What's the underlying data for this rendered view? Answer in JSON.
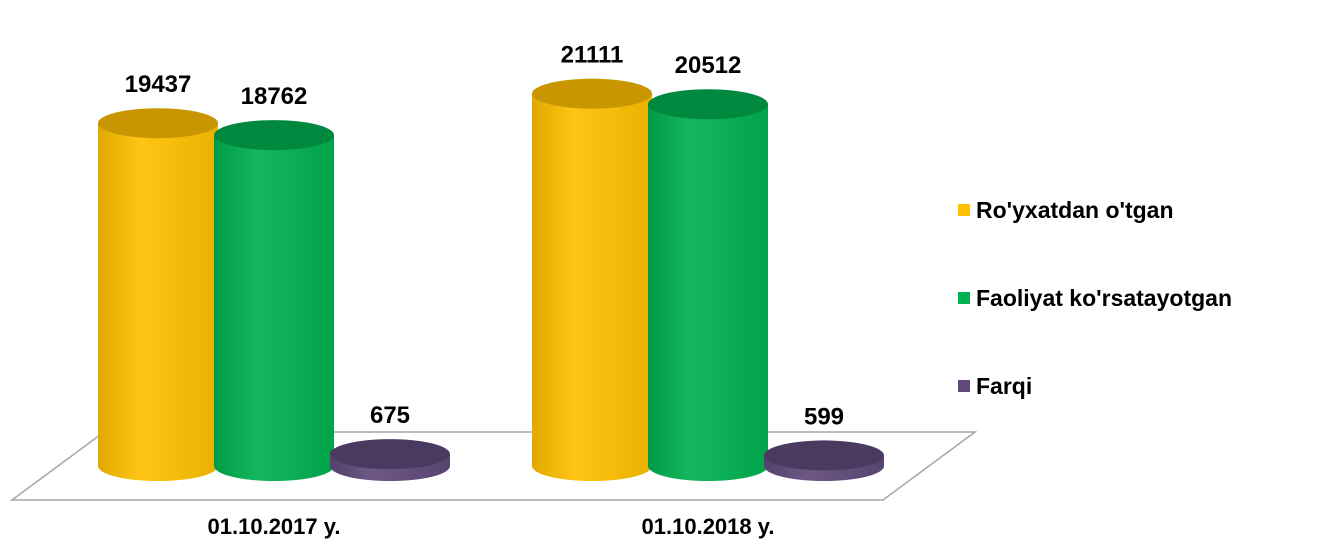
{
  "chart_data": {
    "type": "bar",
    "style": "3d-cylinder",
    "categories": [
      "01.10.2017 y.",
      "01.10.2018 y."
    ],
    "series": [
      {
        "name": "Ro'yxatdan o'tgan",
        "values": [
          19437,
          21111
        ],
        "color": "#FFC000"
      },
      {
        "name": "Faoliyat ko'rsatayotgan",
        "values": [
          18762,
          20512
        ],
        "color": "#00B050"
      },
      {
        "name": "Farqi",
        "values": [
          675,
          599
        ],
        "color": "#604A7B"
      }
    ],
    "title": "",
    "xlabel": "",
    "ylabel": "",
    "ylim": [
      0,
      22000
    ],
    "grid": false,
    "legend_position": "right",
    "data_labels": true
  }
}
